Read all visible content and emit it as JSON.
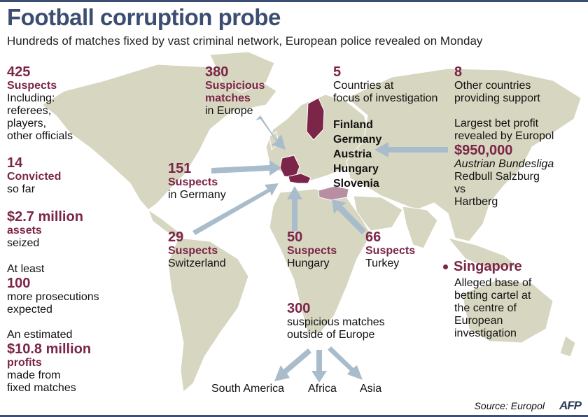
{
  "header": {
    "title": "Football corruption probe",
    "subtitle": "Hundreds of matches fixed by vast criminal network, European police revealed on Monday"
  },
  "left": {
    "suspects": {
      "num": "425",
      "label": "Suspects",
      "lines": [
        "Including:",
        "referees,",
        "players,",
        "other officials"
      ]
    },
    "convicted": {
      "num": "14",
      "label": "Convicted",
      "note": "so far"
    },
    "assets": {
      "num": "$2.7 million",
      "label": "assets",
      "note": "seized"
    },
    "prosecutions": {
      "pre": "At least",
      "num": "100",
      "lines": [
        "more prosecutions",
        "expected"
      ]
    },
    "profits": {
      "pre": "An estimated",
      "num": "$10.8 million",
      "label": "profits",
      "lines": [
        "made from",
        "fixed matches"
      ]
    }
  },
  "europe_matches": {
    "num": "380",
    "label1": "Suspicious",
    "label2": "matches",
    "note": "in Europe"
  },
  "germany": {
    "num": "151",
    "label": "Suspects",
    "note": "in Germany"
  },
  "switzerland": {
    "num": "29",
    "label": "Suspects",
    "note": "Switzerland"
  },
  "hungary": {
    "num": "50",
    "label": "Suspects",
    "note": "Hungary"
  },
  "turkey": {
    "num": "66",
    "label": "Suspects",
    "note": "Turkey"
  },
  "countries": {
    "num": "5",
    "lines": [
      "Countries at",
      "focus of investigation"
    ],
    "names": [
      "Finland",
      "Germany",
      "Austria",
      "Hungary",
      "Slovenia"
    ]
  },
  "other": {
    "num": "8",
    "lines": [
      "Other countries",
      "providing support"
    ],
    "bet_lines": [
      "Largest bet profit",
      "revealed by Europol"
    ],
    "bet_amount": "$950,000",
    "league": "Austrian Bundesliga",
    "match": [
      "Redbull Salzburg",
      "vs",
      "Hartberg"
    ]
  },
  "singapore": {
    "name": "Singapore",
    "lines": [
      "Alleged base of",
      "betting cartel at",
      "the centre of",
      "European",
      "investigation"
    ]
  },
  "outside": {
    "num": "300",
    "lines": [
      "suspicious matches",
      "outside of Europe"
    ],
    "destinations": [
      "South America",
      "Africa",
      "Asia"
    ]
  },
  "footer": {
    "source": "Source: Europol",
    "logo": "AFP"
  },
  "colors": {
    "land": "#d7d6c0",
    "sea": "#ffffff",
    "accent": "#7b2548",
    "focus_country": "#7b2548",
    "turkey": "#b88ea3",
    "arrow": "#a9bccb",
    "title": "#3b4e72"
  }
}
